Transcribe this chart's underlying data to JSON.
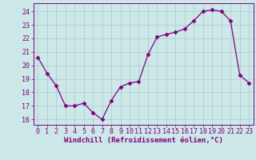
{
  "x": [
    0,
    1,
    2,
    3,
    4,
    5,
    6,
    7,
    8,
    9,
    10,
    11,
    12,
    13,
    14,
    15,
    16,
    17,
    18,
    19,
    20,
    21,
    22,
    23
  ],
  "y": [
    20.6,
    19.4,
    18.5,
    17.0,
    17.0,
    17.2,
    16.5,
    16.0,
    17.4,
    18.4,
    18.7,
    18.8,
    20.8,
    22.1,
    22.3,
    22.45,
    22.7,
    23.3,
    24.0,
    24.1,
    24.0,
    23.3,
    19.3,
    18.7
  ],
  "line_color": "#800080",
  "marker": "D",
  "marker_size": 2.5,
  "bg_color": "#cce8e8",
  "grid_color": "#aacccc",
  "xlabel": "Windchill (Refroidissement éolien,°C)",
  "xlabel_fontsize": 6.5,
  "tick_fontsize": 6.0,
  "ylim": [
    15.6,
    24.6
  ],
  "yticks": [
    16,
    17,
    18,
    19,
    20,
    21,
    22,
    23,
    24
  ],
  "xlim": [
    -0.5,
    23.5
  ],
  "title_color": "#800080",
  "spine_color": "#800080"
}
